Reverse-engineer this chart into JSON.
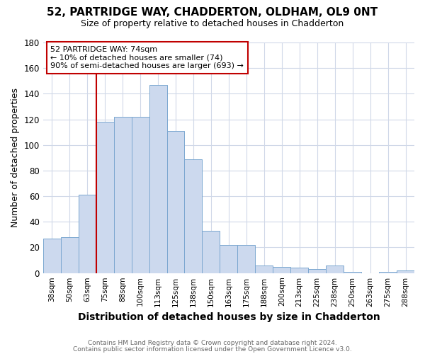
{
  "title1": "52, PARTRIDGE WAY, CHADDERTON, OLDHAM, OL9 0NT",
  "title2": "Size of property relative to detached houses in Chadderton",
  "xlabel": "Distribution of detached houses by size in Chadderton",
  "ylabel": "Number of detached properties",
  "bar_labels": [
    "38sqm",
    "50sqm",
    "63sqm",
    "75sqm",
    "88sqm",
    "100sqm",
    "113sqm",
    "125sqm",
    "138sqm",
    "150sqm",
    "163sqm",
    "175sqm",
    "188sqm",
    "200sqm",
    "213sqm",
    "225sqm",
    "238sqm",
    "250sqm",
    "263sqm",
    "275sqm",
    "288sqm"
  ],
  "bar_values": [
    27,
    28,
    61,
    118,
    122,
    122,
    147,
    111,
    89,
    33,
    22,
    22,
    6,
    5,
    4,
    3,
    6,
    1,
    0,
    1,
    2
  ],
  "bar_color": "#ccd9ee",
  "bar_edge_color": "#7ba7d0",
  "vline_color": "#c00000",
  "annotation_text": "52 PARTRIDGE WAY: 74sqm\n← 10% of detached houses are smaller (74)\n90% of semi-detached houses are larger (693) →",
  "annotation_box_color": "#ffffff",
  "annotation_box_edge": "#c00000",
  "ylim": [
    0,
    180
  ],
  "yticks": [
    0,
    20,
    40,
    60,
    80,
    100,
    120,
    140,
    160,
    180
  ],
  "footer1": "Contains HM Land Registry data © Crown copyright and database right 2024.",
  "footer2": "Contains public sector information licensed under the Open Government Licence v3.0.",
  "bg_color": "#ffffff",
  "plot_bg_color": "#ffffff",
  "grid_color": "#d0d8e8"
}
